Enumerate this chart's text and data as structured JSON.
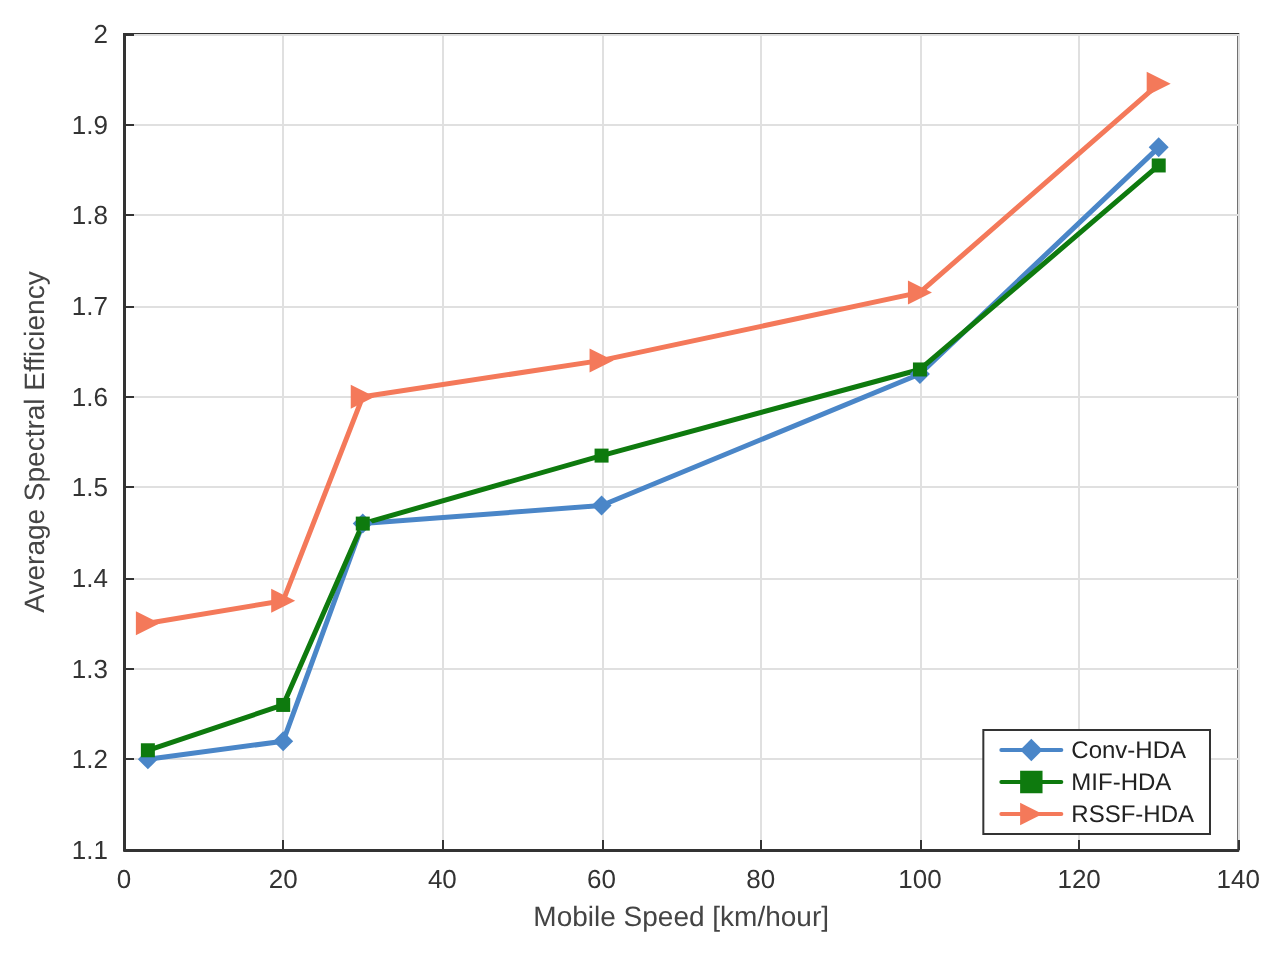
{
  "chart_data": {
    "type": "line",
    "xlabel": "Mobile Speed [km/hour]",
    "ylabel": "Average Spectral Efficiency",
    "x": [
      3,
      20,
      30,
      60,
      100,
      130
    ],
    "series": [
      {
        "name": "Conv-HDA",
        "color": "#4a86c8",
        "marker": "diamond",
        "values": [
          1.2,
          1.22,
          1.46,
          1.48,
          1.625,
          1.875
        ]
      },
      {
        "name": "MIF-HDA",
        "color": "#0e7a0e",
        "marker": "square",
        "values": [
          1.21,
          1.26,
          1.46,
          1.535,
          1.63,
          1.855
        ]
      },
      {
        "name": "RSSF-HDA",
        "color": "#f4795a",
        "marker": "triangle",
        "values": [
          1.35,
          1.375,
          1.6,
          1.64,
          1.715,
          1.945
        ]
      }
    ],
    "xlim": [
      0,
      140
    ],
    "xticks": [
      0,
      20,
      40,
      60,
      80,
      100,
      120,
      140
    ],
    "ylim": [
      1.1,
      2
    ],
    "yticks": [
      1.1,
      1.2,
      1.3,
      1.4,
      1.5,
      1.6,
      1.7,
      1.8,
      1.9,
      2
    ],
    "grid": true,
    "legend": "bottom right",
    "line_style": "solid"
  }
}
